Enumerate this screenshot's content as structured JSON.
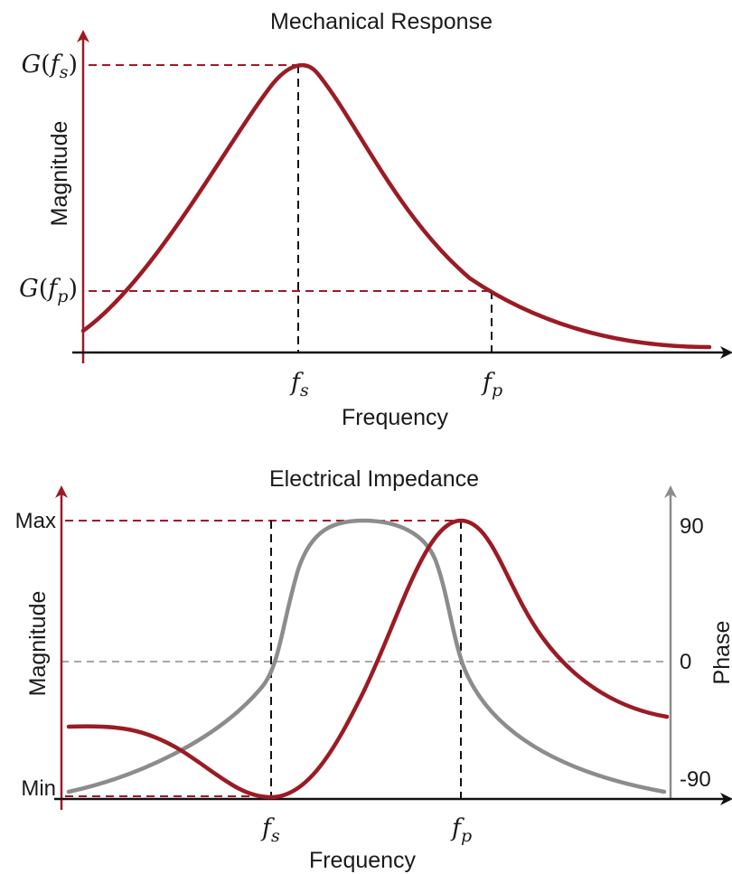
{
  "colors": {
    "magnitude": "#9b1b24",
    "phase": "#8c8c8c",
    "axis": "#111111",
    "guide_black": "#111111",
    "guide_grey": "#8c8c8c"
  },
  "top_plot": {
    "title": "Mechanical Response",
    "y_label": "Magnitude",
    "x_label": "Frequency",
    "y_ticks": {
      "peak_fn": "G",
      "peak_arg": "f",
      "peak_sub": "s",
      "anti_fn": "G",
      "anti_arg": "f",
      "anti_sub": "p",
      "open": "(",
      "close": ")"
    },
    "x_ticks": {
      "fs_base": "f",
      "fs_sub": "s",
      "fp_base": "f",
      "fp_sub": "p"
    }
  },
  "bottom_plot": {
    "title": "Electrical Impedance",
    "y_label_left": "Magnitude",
    "y_label_right": "Phase",
    "x_label": "Frequency",
    "left_ticks": {
      "max": "Max",
      "min": "Min"
    },
    "right_ticks": {
      "plus90": "90",
      "zero": "0",
      "minus90": "-90"
    },
    "x_ticks": {
      "fs_base": "f",
      "fs_sub": "s",
      "fp_base": "f",
      "fp_sub": "p"
    }
  },
  "chart_data": [
    {
      "type": "line",
      "title": "Mechanical Response",
      "xlabel": "Frequency",
      "ylabel": "Magnitude",
      "x_ticks": [
        "fs",
        "fp"
      ],
      "y_ticks": [
        "G(fs)",
        "G(fp)"
      ],
      "x": [
        0,
        0.1,
        0.2,
        0.3,
        0.35,
        0.38,
        0.4,
        0.45,
        0.5,
        0.6,
        0.7,
        0.8,
        0.9,
        1.0
      ],
      "series": [
        {
          "values": [
            0.09,
            0.29,
            0.54,
            0.84,
            0.96,
            1.0,
            0.99,
            0.89,
            0.72,
            0.46,
            0.24,
            0.11,
            0.04,
            0.02
          ]
        }
      ],
      "annotations": [
        "peak at fs",
        "G(fp) at fp"
      ]
    },
    {
      "type": "line",
      "title": "Electrical Impedance",
      "xlabel": "Frequency",
      "ylabel": "Magnitude",
      "y2label": "Phase",
      "x_ticks": [
        "fs",
        "fp"
      ],
      "y_ticks": [
        "Max",
        "Min"
      ],
      "y2_ticks": [
        "90",
        "0",
        "-90"
      ],
      "x": [
        0,
        0.1,
        0.2,
        0.3,
        0.35,
        0.4,
        0.45,
        0.5,
        0.55,
        0.6,
        0.65,
        0.67,
        0.7,
        0.8,
        0.9,
        1.0
      ],
      "series": [
        {
          "values": [
            0.35,
            0.34,
            0.22,
            0.06,
            0.0,
            0.02,
            0.12,
            0.32,
            0.55,
            0.78,
            0.94,
            1.0,
            0.93,
            0.55,
            0.37,
            0.29
          ]
        },
        {
          "values": [
            -82,
            -70,
            -50,
            -24,
            0,
            74,
            89,
            90,
            80,
            45,
            0,
            -15,
            -30,
            -55,
            -70,
            -84
          ]
        }
      ],
      "annotations": [
        "magnitude Min at fs",
        "magnitude Max at fp",
        "phase = 0 at fs and fp"
      ]
    }
  ]
}
